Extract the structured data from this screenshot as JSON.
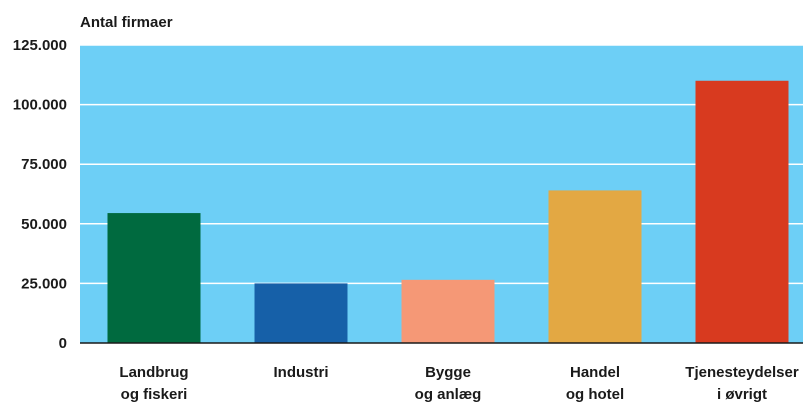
{
  "chart_data": {
    "type": "bar",
    "ylabel": "Antal firmaer",
    "ylim": [
      0,
      125000
    ],
    "yticks": [
      {
        "value": 0,
        "label": "0"
      },
      {
        "value": 25000,
        "label": "25.000"
      },
      {
        "value": 50000,
        "label": "50.000"
      },
      {
        "value": 75000,
        "label": "75.000"
      },
      {
        "value": 100000,
        "label": "100.000"
      },
      {
        "value": 125000,
        "label": "125.000"
      }
    ],
    "grid": true,
    "categories": [
      [
        "Landbrug",
        "og fiskeri"
      ],
      [
        "Industri"
      ],
      [
        "Bygge",
        "og anlæg"
      ],
      [
        "Handel",
        "og hotel"
      ],
      [
        "Tjenesteydelser",
        "i øvrigt"
      ]
    ],
    "values": [
      54500,
      25000,
      26500,
      64000,
      110000
    ],
    "colors": {
      "plot_background": "#6dcff6",
      "bars": [
        "#006a3f",
        "#1660a8",
        "#f59876",
        "#e3a843",
        "#d83a1f"
      ]
    }
  }
}
